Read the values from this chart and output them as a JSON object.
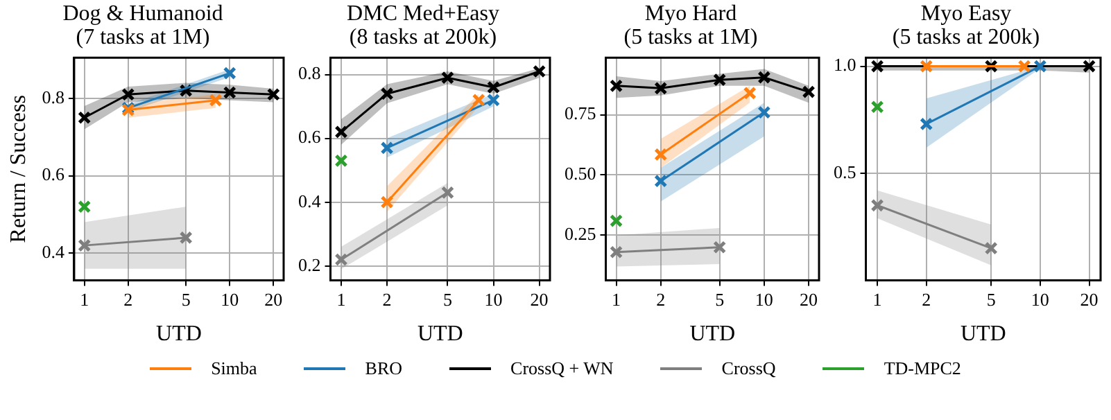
{
  "chart_data": [
    {
      "type": "line",
      "title": "Dog & Humanoid\n(7 tasks at 1M)",
      "xlabel": "UTD",
      "ylabel": "Return / Success",
      "log": "x",
      "xlim": [
        0.85,
        23.5
      ],
      "xticks": [
        1,
        2,
        5,
        10,
        20
      ],
      "ylim": [
        0.33,
        0.905
      ],
      "yticks": [
        0.4,
        0.6,
        0.8
      ],
      "grid": true,
      "marker": "cross",
      "legend": "bottom",
      "series": [
        {
          "name": "Simba",
          "color": "#ff7f0e",
          "x": [
            2,
            8
          ],
          "values": [
            0.77,
            0.795
          ],
          "lower": [
            0.75,
            0.775
          ],
          "upper": [
            0.785,
            0.81
          ]
        },
        {
          "name": "BRO",
          "color": "#1f77b4",
          "x": [
            2,
            10
          ],
          "values": [
            0.775,
            0.865
          ],
          "lower": [
            0.765,
            0.855
          ],
          "upper": [
            0.785,
            0.875
          ]
        },
        {
          "name": "CrossQ + WN",
          "color": "#000000",
          "x": [
            1,
            2,
            5,
            10,
            20
          ],
          "values": [
            0.75,
            0.81,
            0.82,
            0.815,
            0.81
          ],
          "lower": [
            0.72,
            0.79,
            0.8,
            0.795,
            0.79
          ],
          "upper": [
            0.78,
            0.83,
            0.84,
            0.835,
            0.825
          ]
        },
        {
          "name": "CrossQ",
          "color": "#7f7f7f",
          "x": [
            1,
            5
          ],
          "values": [
            0.42,
            0.44
          ],
          "lower": [
            0.36,
            0.36
          ],
          "upper": [
            0.48,
            0.52
          ]
        },
        {
          "name": "TD-MPC2",
          "color": "#2ca02c",
          "x": [
            1
          ],
          "values": [
            0.52
          ]
        }
      ]
    },
    {
      "type": "line",
      "title": "DMC Med+Easy\n(8 tasks at 200k)",
      "xlabel": "UTD",
      "log": "x",
      "xlim": [
        0.85,
        23.5
      ],
      "xticks": [
        1,
        2,
        5,
        10,
        20
      ],
      "ylim": [
        0.155,
        0.853
      ],
      "yticks": [
        0.2,
        0.4,
        0.6,
        0.8
      ],
      "grid": true,
      "marker": "cross",
      "series": [
        {
          "color": "#ff7f0e",
          "x": [
            2,
            8
          ],
          "values": [
            0.4,
            0.72
          ],
          "lower": [
            0.37,
            0.7
          ],
          "upper": [
            0.45,
            0.74
          ]
        },
        {
          "color": "#1f77b4",
          "x": [
            2,
            10
          ],
          "values": [
            0.57,
            0.72
          ],
          "lower": [
            0.54,
            0.7
          ],
          "upper": [
            0.6,
            0.74
          ]
        },
        {
          "color": "#000000",
          "x": [
            1,
            2,
            5,
            10,
            20
          ],
          "values": [
            0.62,
            0.74,
            0.79,
            0.76,
            0.81
          ],
          "lower": [
            0.58,
            0.71,
            0.77,
            0.74,
            0.79
          ],
          "upper": [
            0.66,
            0.77,
            0.81,
            0.78,
            0.82
          ]
        },
        {
          "color": "#7f7f7f",
          "x": [
            1,
            5
          ],
          "values": [
            0.22,
            0.43
          ],
          "lower": [
            0.19,
            0.39
          ],
          "upper": [
            0.26,
            0.46
          ]
        },
        {
          "color": "#2ca02c",
          "x": [
            1
          ],
          "values": [
            0.53
          ]
        }
      ]
    },
    {
      "type": "line",
      "title": "Myo Hard\n(5 tasks at 1M)",
      "xlabel": "UTD",
      "log": "x",
      "xlim": [
        0.85,
        23.5
      ],
      "xticks": [
        1,
        2,
        5,
        10,
        20
      ],
      "ylim": [
        0.063,
        0.987
      ],
      "yticks": [
        0.25,
        {
          "value": 0.5,
          "label": "0.50"
        },
        0.75
      ],
      "grid": true,
      "marker": "cross",
      "series": [
        {
          "color": "#ff7f0e",
          "x": [
            2,
            8
          ],
          "values": [
            0.585,
            0.84
          ],
          "lower": [
            0.53,
            0.8
          ],
          "upper": [
            0.65,
            0.87
          ]
        },
        {
          "color": "#1f77b4",
          "x": [
            2,
            10
          ],
          "values": [
            0.475,
            0.76
          ],
          "lower": [
            0.39,
            0.66
          ],
          "upper": [
            0.53,
            0.8
          ]
        },
        {
          "color": "#000000",
          "x": [
            1,
            2,
            5,
            10,
            20
          ],
          "values": [
            0.87,
            0.86,
            0.895,
            0.905,
            0.845
          ],
          "lower": [
            0.82,
            0.83,
            0.87,
            0.87,
            0.8
          ],
          "upper": [
            0.91,
            0.89,
            0.92,
            0.94,
            0.87
          ]
        },
        {
          "color": "#7f7f7f",
          "x": [
            1,
            5
          ],
          "values": [
            0.18,
            0.2
          ],
          "lower": [
            0.12,
            0.13
          ],
          "upper": [
            0.25,
            0.28
          ]
        },
        {
          "color": "#2ca02c",
          "x": [
            1
          ],
          "values": [
            0.31
          ]
        }
      ]
    },
    {
      "type": "line",
      "title": "Myo Easy\n(5 tasks at 200k)",
      "xlabel": "UTD",
      "log": "x",
      "xlim": [
        0.85,
        23.5
      ],
      "xticks": [
        1,
        2,
        5,
        10,
        20
      ],
      "ylim": [
        0.0,
        1.04
      ],
      "yticks": [
        0.5,
        {
          "value": 1,
          "label": "1.0"
        }
      ],
      "grid": true,
      "marker": "cross",
      "series": [
        {
          "color": "#ff7f0e",
          "x": [
            2,
            8
          ],
          "values": [
            1.0,
            1.0
          ]
        },
        {
          "color": "#1f77b4",
          "x": [
            2,
            10
          ],
          "values": [
            0.73,
            1.0
          ],
          "lower": [
            0.62,
            0.99
          ],
          "upper": [
            0.85,
            1.0
          ]
        },
        {
          "color": "#000000",
          "x": [
            1,
            2,
            5,
            10,
            20
          ],
          "values": [
            1.0,
            null,
            1.0,
            null,
            1.0
          ],
          "lower": [
            0.98,
            0.98,
            0.98,
            0.98,
            0.97
          ],
          "upper": [
            1.0,
            1.0,
            1.0,
            1.0,
            1.0
          ]
        },
        {
          "color": "#7f7f7f",
          "x": [
            1,
            5
          ],
          "values": [
            0.35,
            0.15
          ],
          "lower": [
            0.29,
            0.07
          ],
          "upper": [
            0.42,
            0.26
          ]
        },
        {
          "color": "#2ca02c",
          "x": [
            1
          ],
          "values": [
            0.81
          ]
        }
      ]
    }
  ]
}
